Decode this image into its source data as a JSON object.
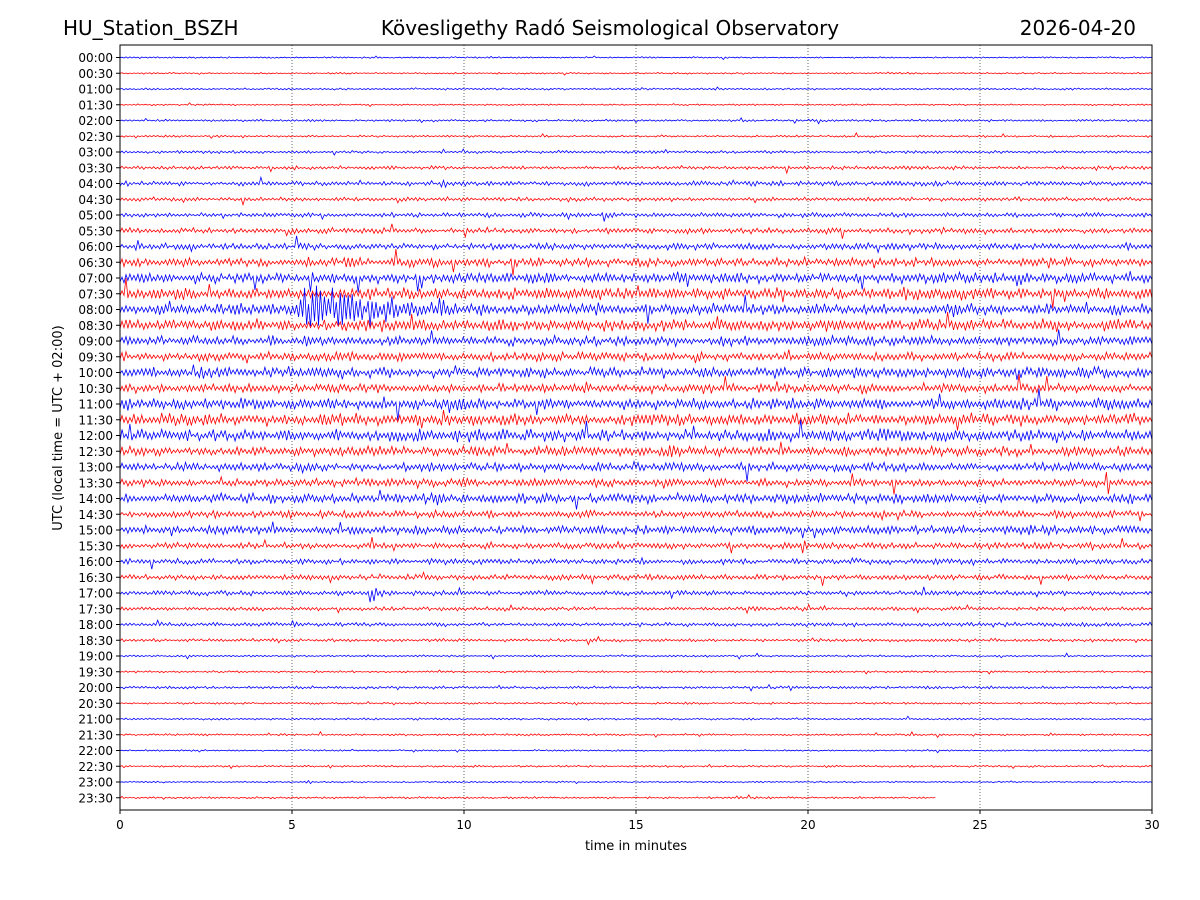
{
  "header": {
    "station": "HU_Station_BSZH",
    "title": "Kövesligethy Radó Seismological Observatory",
    "date": "2026-04-20"
  },
  "colors": {
    "even_trace": "#0000ff",
    "odd_trace": "#ff0000",
    "grid": "#000000"
  },
  "chart_data": {
    "type": "line",
    "title": "Kövesligethy Radó Seismological Observatory",
    "xlabel": "time in minutes",
    "ylabel": "UTC (local time = UTC + 02:00)",
    "xlim": [
      0,
      30
    ],
    "x_ticks": [
      "0",
      "5",
      "10",
      "15",
      "20",
      "25",
      "30"
    ],
    "y_ticks": [
      "00:00",
      "00:30",
      "01:00",
      "01:30",
      "02:00",
      "02:30",
      "03:00",
      "03:30",
      "04:00",
      "04:30",
      "05:00",
      "05:30",
      "06:00",
      "06:30",
      "07:00",
      "07:30",
      "08:00",
      "08:30",
      "09:00",
      "09:30",
      "10:00",
      "10:30",
      "11:00",
      "11:30",
      "12:00",
      "12:30",
      "13:00",
      "13:30",
      "14:00",
      "14:30",
      "15:00",
      "15:30",
      "16:00",
      "16:30",
      "17:00",
      "17:30",
      "18:00",
      "18:30",
      "19:00",
      "19:30",
      "20:00",
      "20:30",
      "21:00",
      "21:30",
      "22:00",
      "22:30",
      "23:00",
      "23:30"
    ],
    "grid": "vertical dotted",
    "trace_noise_amplitude": [
      0.04,
      0.04,
      0.05,
      0.04,
      0.06,
      0.05,
      0.07,
      0.09,
      0.12,
      0.1,
      0.12,
      0.14,
      0.16,
      0.22,
      0.26,
      0.3,
      0.28,
      0.3,
      0.24,
      0.22,
      0.26,
      0.24,
      0.28,
      0.3,
      0.3,
      0.24,
      0.22,
      0.2,
      0.24,
      0.18,
      0.22,
      0.16,
      0.14,
      0.14,
      0.12,
      0.1,
      0.1,
      0.08,
      0.05,
      0.05,
      0.07,
      0.05,
      0.05,
      0.05,
      0.04,
      0.05,
      0.04,
      0.05
    ],
    "last_trace_end_minute": 23.7,
    "events": [
      {
        "trace": "08:00",
        "start_minute": 5.0,
        "duration_minutes": 5.5,
        "peak_amplitude": 2.4
      },
      {
        "trace": "17:00",
        "start_minute": 7.2,
        "duration_minutes": 0.6,
        "peak_amplitude": 1.0
      },
      {
        "trace": "04:00",
        "start_minute": 9.3,
        "duration_minutes": 0.6,
        "peak_amplitude": 0.5
      },
      {
        "trace": "15:30",
        "start_minute": 19.8,
        "duration_minutes": 0.5,
        "peak_amplitude": 0.7
      },
      {
        "trace": "12:30",
        "start_minute": 15.9,
        "duration_minutes": 1.5,
        "peak_amplitude": 0.6
      },
      {
        "trace": "07:00",
        "start_minute": 26.0,
        "duration_minutes": 0.8,
        "peak_amplitude": 0.9
      },
      {
        "trace": "16:30",
        "start_minute": 24.8,
        "duration_minutes": 0.4,
        "peak_amplitude": 0.6
      },
      {
        "trace": "10:00",
        "start_minute": 6.4,
        "duration_minutes": 0.6,
        "peak_amplitude": 0.6
      }
    ]
  }
}
